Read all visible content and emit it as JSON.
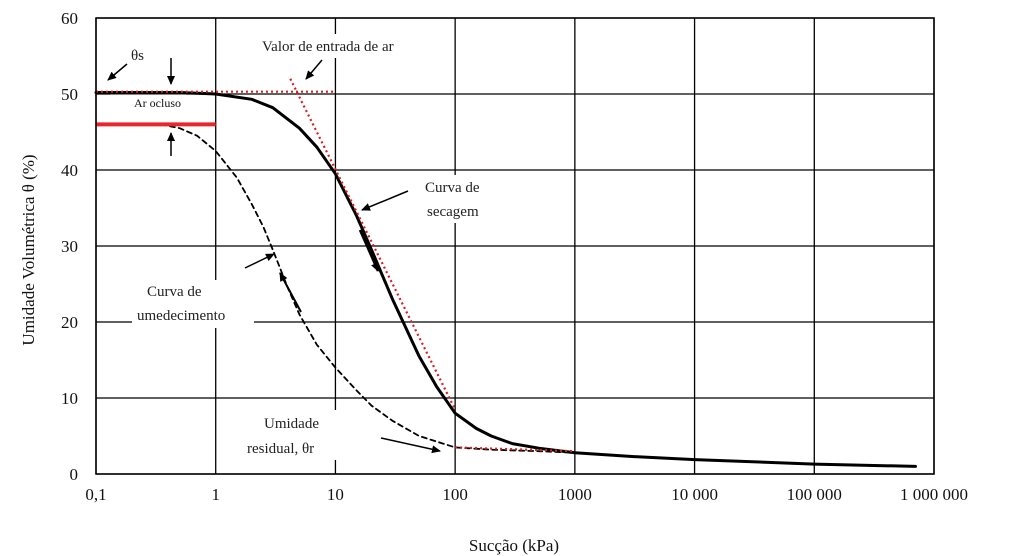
{
  "chart_data": {
    "type": "line",
    "xlabel": "Sucção (kPa)",
    "ylabel": "Umidade Volumétrica θ (%)",
    "x_scale": "log",
    "xlim": [
      0.1,
      1000000
    ],
    "ylim": [
      0,
      60
    ],
    "grid": true,
    "x_ticks": [
      0.1,
      1,
      10,
      100,
      1000,
      10000,
      100000,
      1000000
    ],
    "x_tick_labels": [
      "0,1",
      "1",
      "10",
      "100",
      "1000",
      "10 000",
      "100 000",
      "1 000 000"
    ],
    "y_ticks": [
      0,
      10,
      20,
      30,
      40,
      50,
      60
    ],
    "y_tick_labels": [
      "0",
      "10",
      "20",
      "30",
      "40",
      "50",
      "60"
    ],
    "series": [
      {
        "style": "solid",
        "color": "#000000",
        "x": [
          0.1,
          0.5,
          1,
          2,
          3,
          5,
          7,
          10,
          15,
          20,
          30,
          50,
          70,
          100,
          150,
          200,
          300,
          500,
          1000,
          3000,
          10000,
          100000,
          700000
        ],
        "y": [
          50.2,
          50.2,
          50.0,
          49.3,
          48.2,
          45.5,
          43.0,
          39.5,
          34.0,
          29.5,
          23.0,
          15.5,
          11.5,
          8.0,
          6.0,
          5.0,
          4.0,
          3.4,
          2.8,
          2.3,
          1.9,
          1.3,
          1.0
        ]
      },
      {
        "style": "dashed",
        "color": "#000000",
        "x": [
          0.35,
          0.5,
          0.7,
          1,
          1.5,
          2,
          2.5,
          3,
          4,
          5,
          7,
          10,
          15,
          20,
          30,
          50,
          100,
          200,
          500,
          1000,
          3000,
          10000,
          100000,
          700000
        ],
        "y": [
          46.0,
          45.5,
          44.5,
          42.5,
          39.0,
          35.5,
          32.5,
          29.5,
          24.5,
          21.0,
          17.0,
          14.0,
          11.0,
          9.0,
          7.0,
          5.0,
          3.5,
          3.2,
          3.0,
          2.8,
          2.3,
          1.9,
          1.3,
          1.0
        ]
      },
      {
        "style": "dotted",
        "color": "#d62020",
        "x": [
          0.1,
          10
        ],
        "y": [
          50.3,
          50.3
        ]
      },
      {
        "style": "dotted",
        "color": "#d62020",
        "x": [
          4.2,
          100
        ],
        "y": [
          52,
          8.5
        ]
      },
      {
        "style": "dotted",
        "color": "#d62020",
        "x": [
          100,
          1000
        ],
        "y": [
          3.5,
          3.0
        ]
      },
      {
        "style": "solid-thick",
        "color": "#e8262d",
        "x": [
          0.1,
          1
        ],
        "y": [
          46.0,
          46.0
        ]
      }
    ],
    "annotations": {
      "theta_s": "θs",
      "ar_ocluso": "Ar ocluso",
      "air_entry": "Valor de entrada de ar",
      "drying_curve_1": "Curva de",
      "drying_curve_2": "secagem",
      "wetting_curve_1": "Curva de",
      "wetting_curve_2": "umedecimento",
      "residual_1": "Umidade",
      "residual_2": "residual, θr"
    }
  }
}
